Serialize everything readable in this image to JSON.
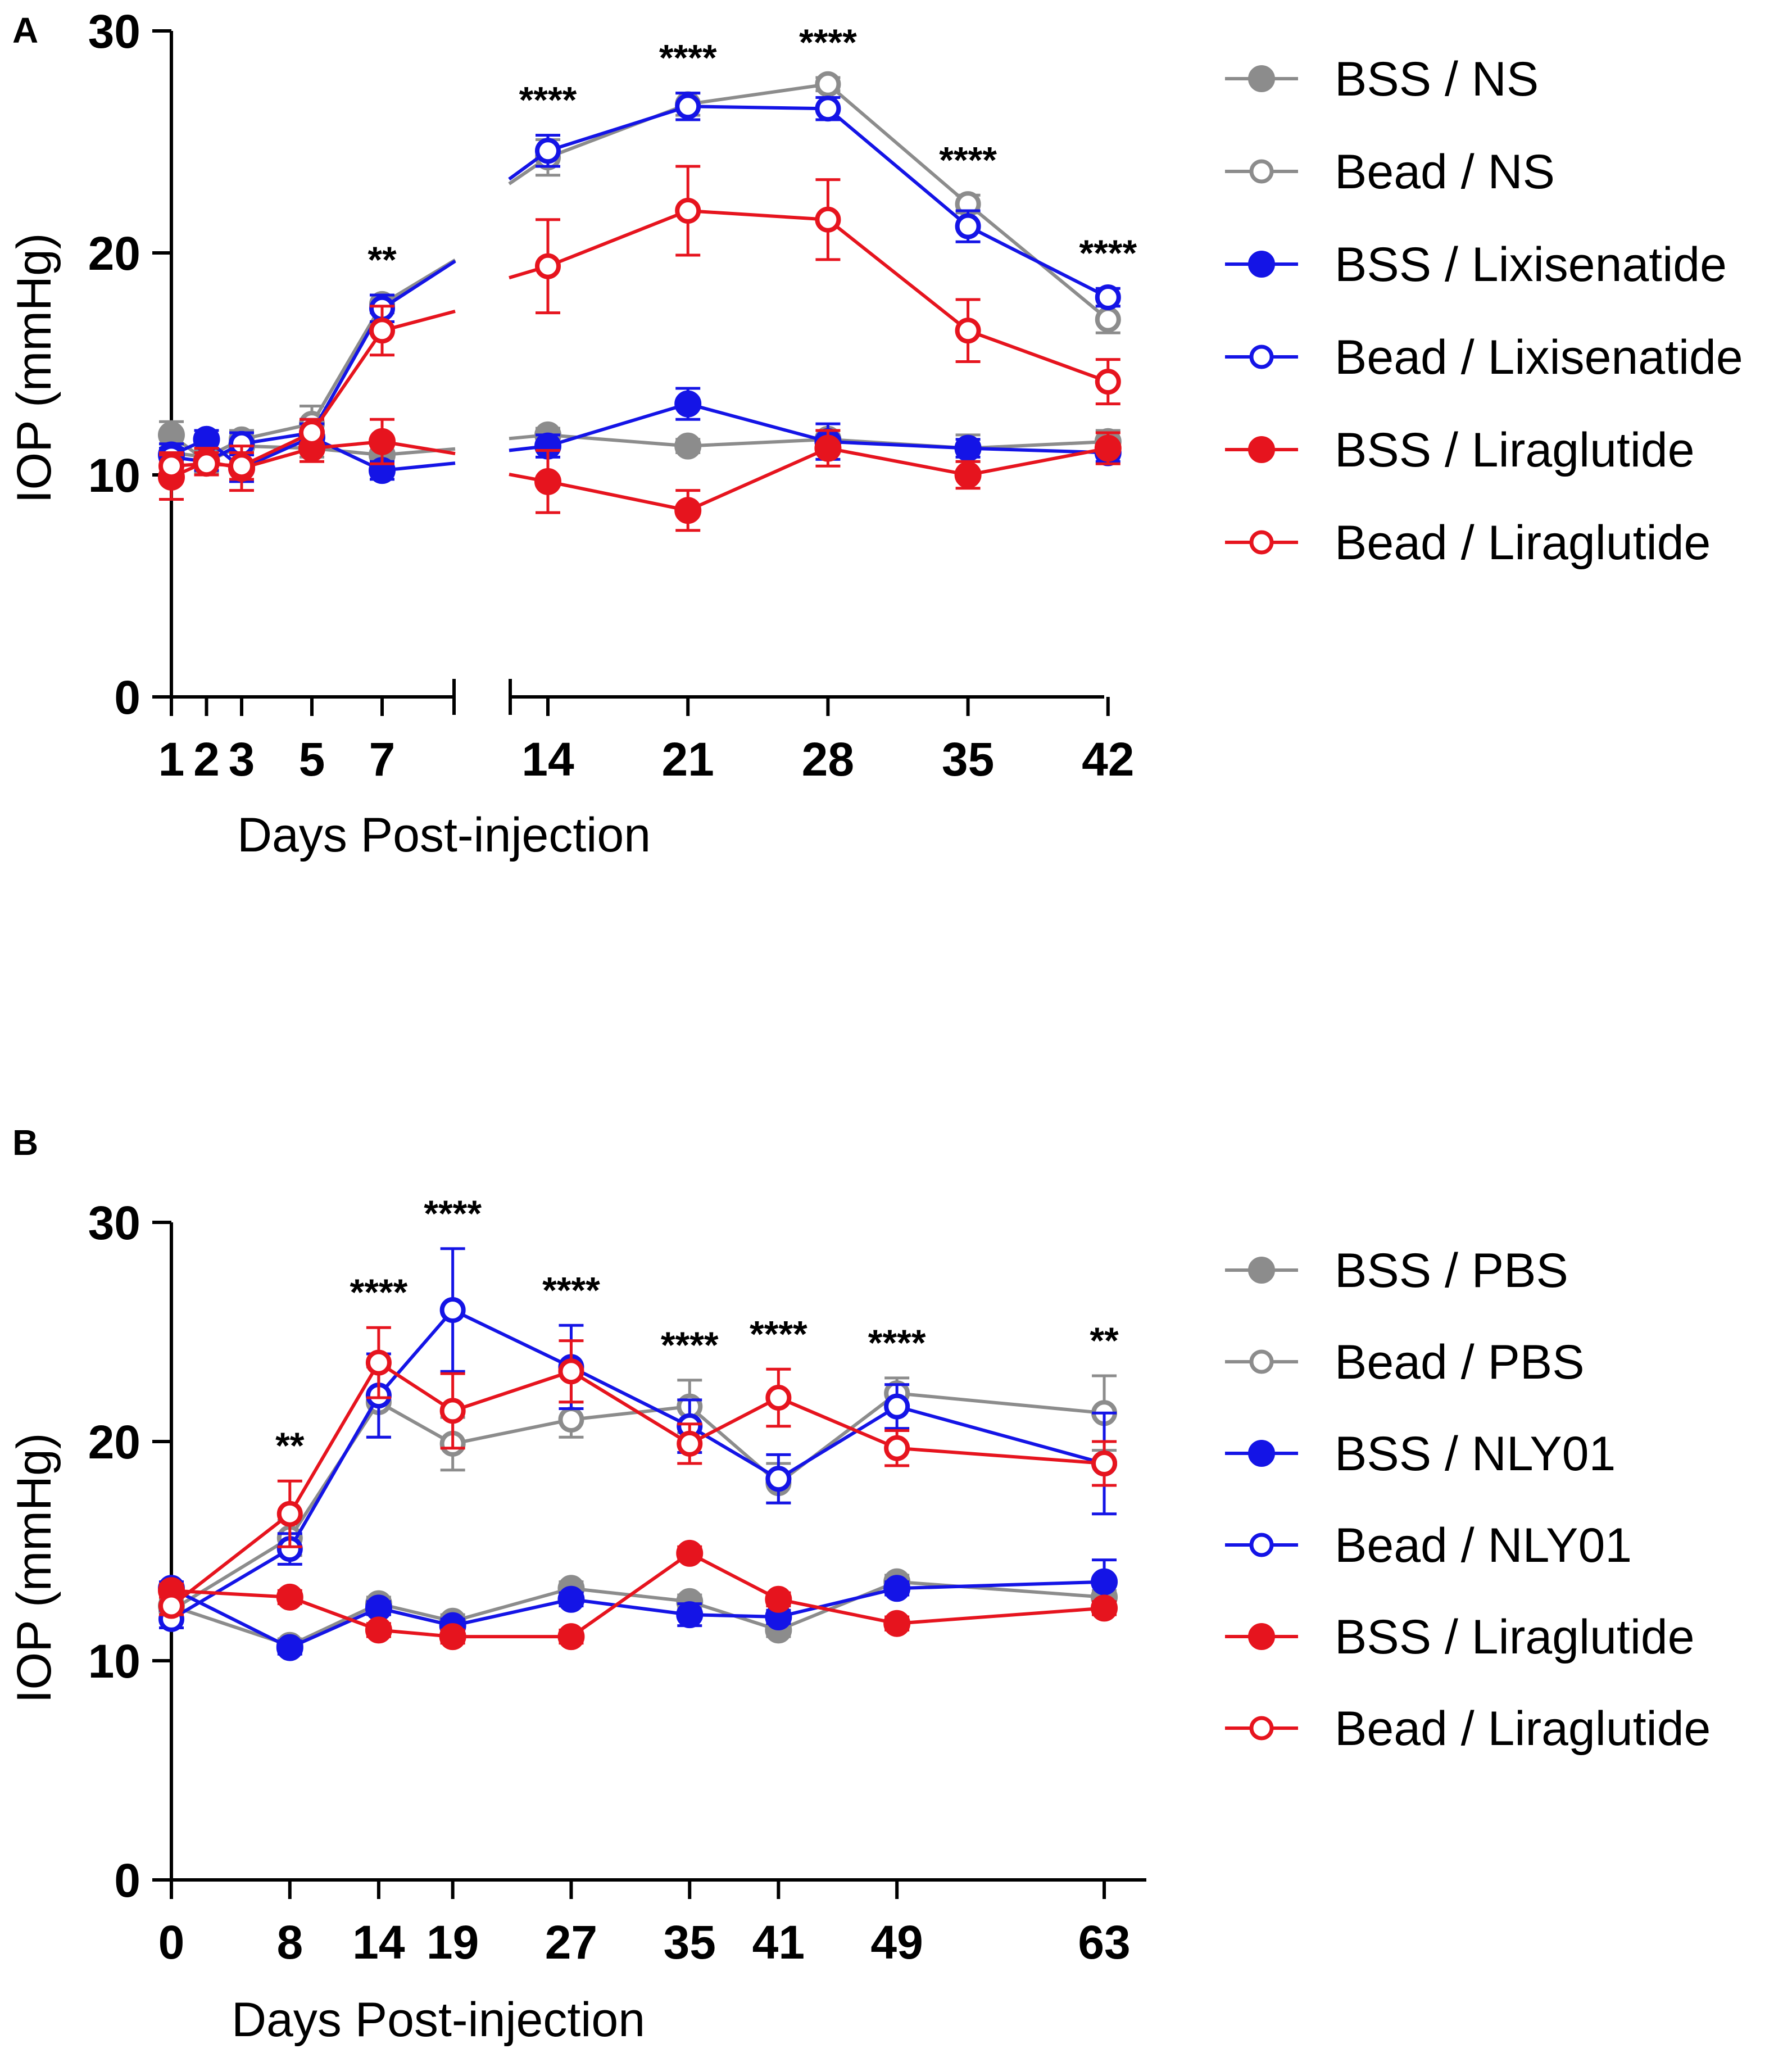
{
  "colors": {
    "gray": "#8c8c8c",
    "blue": "#1414e6",
    "red": "#e6141e",
    "axis": "#000000"
  },
  "chart_data": [
    {
      "panel": "A",
      "type": "line",
      "xlabel": "Days Post-injection",
      "ylabel": "IOP (mmHg)",
      "ylim": [
        0,
        30
      ],
      "yticks": [
        0,
        10,
        20,
        30
      ],
      "axis_break": [
        7,
        14
      ],
      "x_tick_labels": [
        "1",
        "2",
        "3",
        "5",
        "7",
        "14",
        "21",
        "28",
        "35",
        "42"
      ],
      "x": [
        1,
        2,
        3,
        5,
        7,
        14,
        21,
        28,
        35,
        42
      ],
      "legend_position": "right",
      "series": [
        {
          "name": "BSS / NS",
          "color": "gray",
          "marker": "filled",
          "values": [
            11.8,
            10.6,
            11.3,
            11.2,
            10.9,
            11.8,
            11.3,
            11.6,
            11.2,
            11.5
          ],
          "errors": [
            0.6,
            0.5,
            0.7,
            0.4,
            0.5,
            0.3,
            0.3,
            0.4,
            0.6,
            0.5
          ]
        },
        {
          "name": "Bead / NS",
          "color": "gray",
          "marker": "open",
          "values": [
            11.0,
            10.8,
            11.6,
            12.3,
            17.7,
            24.3,
            26.7,
            27.6,
            22.2,
            17.0
          ],
          "errors": [
            0.4,
            0.3,
            0.4,
            0.8,
            0.4,
            0.8,
            0.5,
            0.3,
            0.4,
            0.6
          ]
        },
        {
          "name": "BSS / Lixisenatide",
          "color": "blue",
          "marker": "filled",
          "values": [
            10.9,
            11.6,
            10.3,
            11.7,
            10.2,
            11.3,
            13.2,
            11.5,
            11.2,
            11.0
          ],
          "errors": [
            0.5,
            0.4,
            0.6,
            0.6,
            0.4,
            0.5,
            0.7,
            0.8,
            0.4,
            0.4
          ]
        },
        {
          "name": "Bead / Lixisenatide",
          "color": "blue",
          "marker": "open",
          "values": [
            10.8,
            10.6,
            11.4,
            11.9,
            17.5,
            24.6,
            26.6,
            26.5,
            21.2,
            18.0
          ],
          "errors": [
            0.4,
            0.4,
            0.5,
            0.6,
            0.6,
            0.7,
            0.6,
            0.5,
            0.7,
            0.4
          ]
        },
        {
          "name": "BSS / Liraglutide",
          "color": "red",
          "marker": "filled",
          "values": [
            9.9,
            10.6,
            10.3,
            11.2,
            11.5,
            9.7,
            8.4,
            11.2,
            10.0,
            11.2
          ],
          "errors": [
            1.0,
            0.6,
            1.0,
            0.6,
            1.0,
            1.4,
            0.9,
            0.8,
            0.6,
            0.7
          ]
        },
        {
          "name": "Bead / Liraglutide",
          "color": "red",
          "marker": "open",
          "values": [
            10.4,
            10.5,
            10.4,
            11.9,
            16.5,
            19.4,
            21.9,
            21.5,
            16.5,
            14.2
          ],
          "errors": [
            0.6,
            0.5,
            0.6,
            0.6,
            1.1,
            2.1,
            2.0,
            1.8,
            1.4,
            1.0
          ]
        }
      ],
      "significance": [
        {
          "x": 7,
          "label": "**"
        },
        {
          "x": 14,
          "label": "****"
        },
        {
          "x": 21,
          "label": "****"
        },
        {
          "x": 28,
          "label": "****"
        },
        {
          "x": 35,
          "label": "****"
        },
        {
          "x": 42,
          "label": "****"
        }
      ]
    },
    {
      "panel": "B",
      "type": "line",
      "xlabel": "Days Post-injection",
      "ylabel": "IOP (mmHg)",
      "ylim": [
        0,
        30
      ],
      "yticks": [
        0,
        10,
        20,
        30
      ],
      "x_tick_labels": [
        "0",
        "8",
        "14",
        "19",
        "27",
        "35",
        "41",
        "49",
        "63"
      ],
      "x": [
        0,
        8,
        14,
        19,
        27,
        35,
        41,
        49,
        63
      ],
      "legend_position": "right",
      "series": [
        {
          "name": "BSS / PBS",
          "color": "gray",
          "marker": "filled",
          "values": [
            12.5,
            10.7,
            12.6,
            11.8,
            13.3,
            12.7,
            11.4,
            13.6,
            12.9
          ],
          "errors": [
            0.3,
            0.3,
            0.3,
            0.3,
            0.3,
            0.3,
            0.3,
            0.3,
            0.3
          ]
        },
        {
          "name": "Bead / PBS",
          "color": "gray",
          "marker": "open",
          "values": [
            12.3,
            15.6,
            21.8,
            19.9,
            21.0,
            21.6,
            18.1,
            22.2,
            21.3
          ],
          "errors": [
            0.4,
            0.8,
            1.6,
            1.2,
            0.8,
            1.2,
            0.9,
            0.7,
            1.7
          ]
        },
        {
          "name": "BSS / NLY01",
          "color": "blue",
          "marker": "filled",
          "values": [
            13.3,
            10.6,
            12.4,
            11.6,
            12.8,
            12.1,
            12.0,
            13.3,
            13.6
          ],
          "errors": [
            0.3,
            0.3,
            0.3,
            0.3,
            0.3,
            0.5,
            0.3,
            0.3,
            1.0
          ]
        },
        {
          "name": "Bead / NLY01",
          "color": "blue",
          "marker": "open",
          "values": [
            11.9,
            15.1,
            22.1,
            26.0,
            23.4,
            20.7,
            18.3,
            21.6,
            19.0
          ],
          "errors": [
            0.4,
            0.7,
            1.9,
            2.8,
            1.9,
            1.2,
            1.1,
            1.0,
            2.3
          ]
        },
        {
          "name": "BSS / Liraglutide",
          "color": "red",
          "marker": "filled",
          "values": [
            13.2,
            12.9,
            11.4,
            11.1,
            11.1,
            14.9,
            12.8,
            11.7,
            12.4
          ],
          "errors": [
            0.3,
            0.3,
            0.3,
            0.3,
            0.3,
            0.3,
            0.3,
            0.3,
            0.3
          ]
        },
        {
          "name": "Bead / Liraglutide",
          "color": "red",
          "marker": "open",
          "values": [
            12.5,
            16.7,
            23.6,
            21.4,
            23.2,
            19.9,
            22.0,
            19.7,
            19.0
          ],
          "errors": [
            0.4,
            1.5,
            1.6,
            1.7,
            1.4,
            0.9,
            1.3,
            0.8,
            1.0
          ]
        }
      ],
      "significance": [
        {
          "x": 8,
          "label": "**"
        },
        {
          "x": 14,
          "label": "****"
        },
        {
          "x": 19,
          "label": "****"
        },
        {
          "x": 27,
          "label": "****"
        },
        {
          "x": 35,
          "label": "****"
        },
        {
          "x": 41,
          "label": "****"
        },
        {
          "x": 49,
          "label": "****"
        },
        {
          "x": 63,
          "label": "**"
        }
      ]
    }
  ]
}
